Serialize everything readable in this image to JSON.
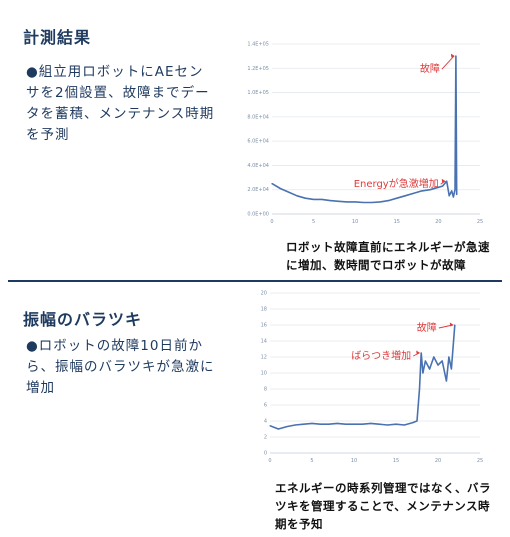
{
  "section1": {
    "title": "計測結果",
    "bullet": "●組立用ロボットにAEセンサを2個設置、故障までデータを蓄積、メンテナンス時期を予測",
    "caption": "ロボット故障直前にエネルギーが急速に増加、数時間でロボットが故障"
  },
  "section2": {
    "title": "振幅のバラツキ",
    "bullet": "●ロボットの故障10日前から、振幅のバラツキが急激に増加",
    "caption": "エネルギーの時系列管理ではなく、バラツキを管理することで、メンテナンス時期を予知"
  },
  "chart_data": [
    {
      "type": "line",
      "x_ticks": [
        "0",
        "5",
        "10",
        "15",
        "20",
        "25"
      ],
      "y_ticks": [
        "0.0E+00",
        "2.0E+04",
        "4.0E+04",
        "6.0E+04",
        "8.0E+04",
        "1.0E+05",
        "1.2E+05",
        "1.4E+05"
      ],
      "xlim": [
        0,
        25
      ],
      "ylim": [
        0,
        140000
      ],
      "x": [
        0,
        1,
        2,
        3,
        4,
        5,
        6,
        7,
        8,
        9,
        10,
        11,
        12,
        13,
        14,
        15,
        16,
        17,
        18,
        19,
        20,
        20.5,
        21,
        21.3,
        21.6,
        21.8,
        22,
        22.1,
        22.2
      ],
      "y": [
        25000,
        21000,
        18000,
        15000,
        13000,
        12000,
        12000,
        11000,
        10500,
        10000,
        10000,
        9500,
        9500,
        10000,
        11000,
        13000,
        15000,
        17000,
        19000,
        20000,
        22000,
        23000,
        27000,
        15000,
        19000,
        14000,
        20000,
        130000,
        16000
      ],
      "annotations": [
        {
          "text": "故障",
          "x": 22.1,
          "y": 130000
        },
        {
          "text": "Energyが急激増加",
          "x": 21,
          "y": 27000
        }
      ],
      "grid": true,
      "color": "#4a72b0"
    },
    {
      "type": "line",
      "x_ticks": [
        "0",
        "5",
        "10",
        "15",
        "20",
        "25"
      ],
      "y_ticks": [
        "0",
        "2",
        "4",
        "6",
        "8",
        "10",
        "12",
        "14",
        "16",
        "18",
        "20"
      ],
      "xlim": [
        0,
        25
      ],
      "ylim": [
        0,
        20
      ],
      "x": [
        0,
        1,
        2,
        3,
        4,
        5,
        6,
        7,
        8,
        9,
        10,
        11,
        12,
        13,
        14,
        15,
        16,
        17,
        17.5,
        17.8,
        18,
        18.2,
        18.5,
        19,
        19.5,
        20,
        20.5,
        21,
        21.3,
        21.6,
        22
      ],
      "y": [
        3.4,
        3.0,
        3.3,
        3.5,
        3.6,
        3.7,
        3.6,
        3.6,
        3.7,
        3.6,
        3.6,
        3.6,
        3.7,
        3.6,
        3.5,
        3.6,
        3.5,
        3.8,
        4.0,
        8.0,
        12.5,
        10.0,
        11.5,
        10.5,
        12.0,
        11.0,
        11.5,
        9.0,
        12.0,
        10.5,
        16.0
      ],
      "annotations": [
        {
          "text": "故障",
          "x": 22,
          "y": 16.0
        },
        {
          "text": "ばらつき増加",
          "x": 18,
          "y": 12.5
        }
      ],
      "grid": true,
      "color": "#4a72b0"
    }
  ]
}
